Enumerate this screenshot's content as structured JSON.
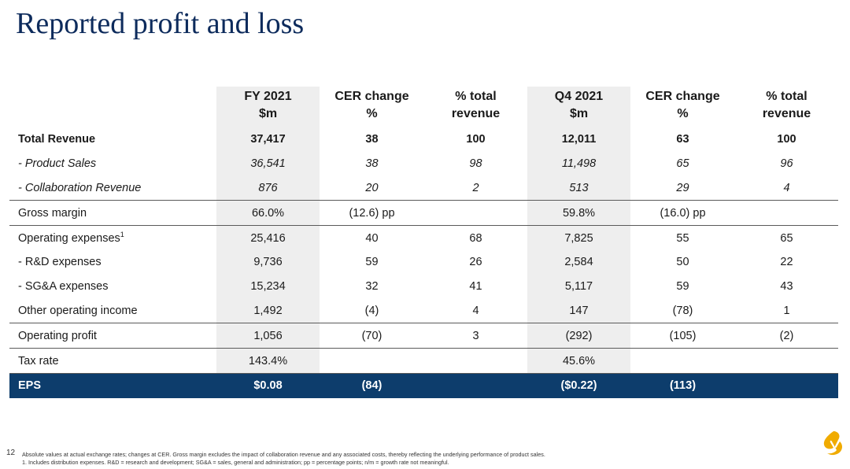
{
  "page": {
    "title": "Reported profit and loss",
    "page_number": "12",
    "footnote_line1": "Absolute values at actual exchange rates; changes at CER. Gross margin excludes the impact of collaboration revenue and any associated costs, thereby reflecting the underlying performance of product sales.",
    "footnote_line2": "1. Includes distribution expenses.  R&D = research and development; SG&A = sales, general and administration; pp = percentage points; n/m = growth rate not meaningful.",
    "logo_icon": "astrazeneca-symbol-icon",
    "accent_color": "#0d2b5c",
    "eps_row_color": "#0d3d6c",
    "logo_color": "#f0ab00"
  },
  "table": {
    "headers": [
      {
        "line1": "",
        "line2": ""
      },
      {
        "line1": "FY 2021",
        "line2": "$m"
      },
      {
        "line1": "CER change",
        "line2": "%"
      },
      {
        "line1": "% total",
        "line2": "revenue"
      },
      {
        "line1": "Q4 2021",
        "line2": "$m"
      },
      {
        "line1": "CER change",
        "line2": "%"
      },
      {
        "line1": "% total",
        "line2": "revenue"
      }
    ],
    "rows": [
      {
        "label": "Total Revenue",
        "sup": "",
        "cells": [
          "37,417",
          "38",
          "100",
          "12,011",
          "63",
          "100"
        ]
      },
      {
        "label": "- Product Sales",
        "sup": "",
        "cells": [
          "36,541",
          "38",
          "98",
          "11,498",
          "65",
          "96"
        ]
      },
      {
        "label": "- Collaboration Revenue",
        "sup": "",
        "cells": [
          "876",
          "20",
          "2",
          "513",
          "29",
          "4"
        ]
      },
      {
        "label": "Gross margin",
        "sup": "",
        "cells": [
          "66.0%",
          "(12.6) pp",
          "",
          "59.8%",
          "(16.0) pp",
          ""
        ]
      },
      {
        "label": "Operating expenses",
        "sup": "1",
        "cells": [
          "25,416",
          "40",
          "68",
          "7,825",
          "55",
          "65"
        ]
      },
      {
        "label": "- R&D expenses",
        "sup": "",
        "cells": [
          "9,736",
          "59",
          "26",
          "2,584",
          "50",
          "22"
        ]
      },
      {
        "label": "- SG&A expenses",
        "sup": "",
        "cells": [
          "15,234",
          "32",
          "41",
          "5,117",
          "59",
          "43"
        ]
      },
      {
        "label": "Other operating income",
        "sup": "",
        "cells": [
          "1,492",
          "(4)",
          "4",
          "147",
          "(78)",
          "1"
        ]
      },
      {
        "label": "Operating profit",
        "sup": "",
        "cells": [
          "1,056",
          "(70)",
          "3",
          "(292)",
          "(105)",
          "(2)"
        ]
      },
      {
        "label": "Tax rate",
        "sup": "",
        "cells": [
          "143.4%",
          "",
          "",
          "45.6%",
          "",
          ""
        ]
      },
      {
        "label": "EPS",
        "sup": "",
        "cells": [
          "$0.08",
          "(84)",
          "",
          "($0.22)",
          "(113)",
          ""
        ]
      }
    ]
  }
}
